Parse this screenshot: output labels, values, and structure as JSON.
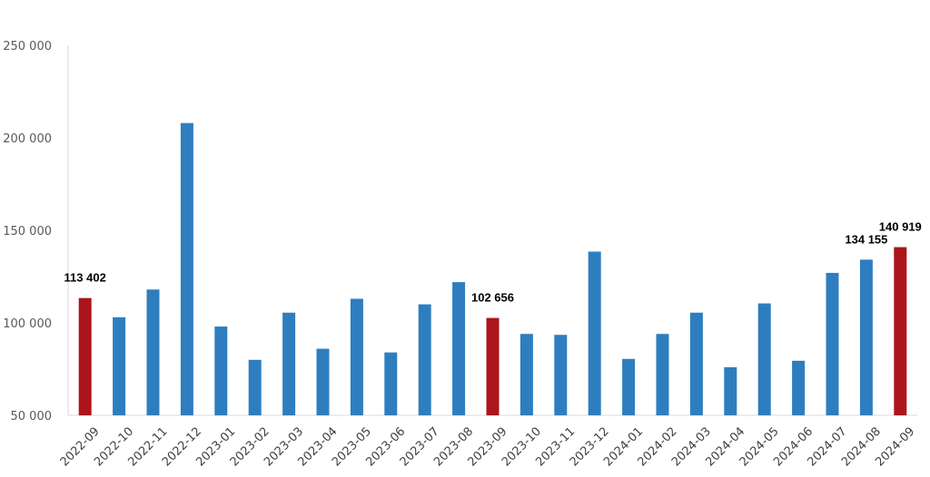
{
  "chart_data": {
    "type": "bar",
    "categories": [
      "2022-09",
      "2022-10",
      "2022-11",
      "2022-12",
      "2023-01",
      "2023-02",
      "2023-03",
      "2023-04",
      "2023-05",
      "2023-06",
      "2023-07",
      "2023-08",
      "2023-09",
      "2023-10",
      "2023-11",
      "2023-12",
      "2024-01",
      "2024-02",
      "2024-03",
      "2024-04",
      "2024-05",
      "2024-06",
      "2024-07",
      "2024-08",
      "2024-09"
    ],
    "values": [
      113402,
      103000,
      118000,
      208000,
      98000,
      80000,
      105500,
      86000,
      113000,
      84000,
      110000,
      122000,
      102656,
      94000,
      93500,
      138500,
      80500,
      94000,
      105500,
      76000,
      110500,
      79500,
      127000,
      134155,
      140919
    ],
    "highlighted": [
      "2022-09",
      "2023-09",
      "2024-09"
    ],
    "data_labels": [
      {
        "category": "2022-09",
        "text": "113 402"
      },
      {
        "category": "2023-09",
        "text": "102 656"
      },
      {
        "category": "2024-08",
        "text": "134 155"
      },
      {
        "category": "2024-09",
        "text": "140 919"
      }
    ],
    "yticks": [
      50000,
      100000,
      150000,
      200000,
      250000
    ],
    "ytick_labels": [
      "50 000",
      "100 000",
      "150 000",
      "200 000",
      "250 000"
    ],
    "ylim": [
      50000,
      250000
    ],
    "grid": false,
    "colors": {
      "bar": "#2e7ebf",
      "highlight": "#ab151b",
      "axis": "#d9d9d9"
    }
  }
}
